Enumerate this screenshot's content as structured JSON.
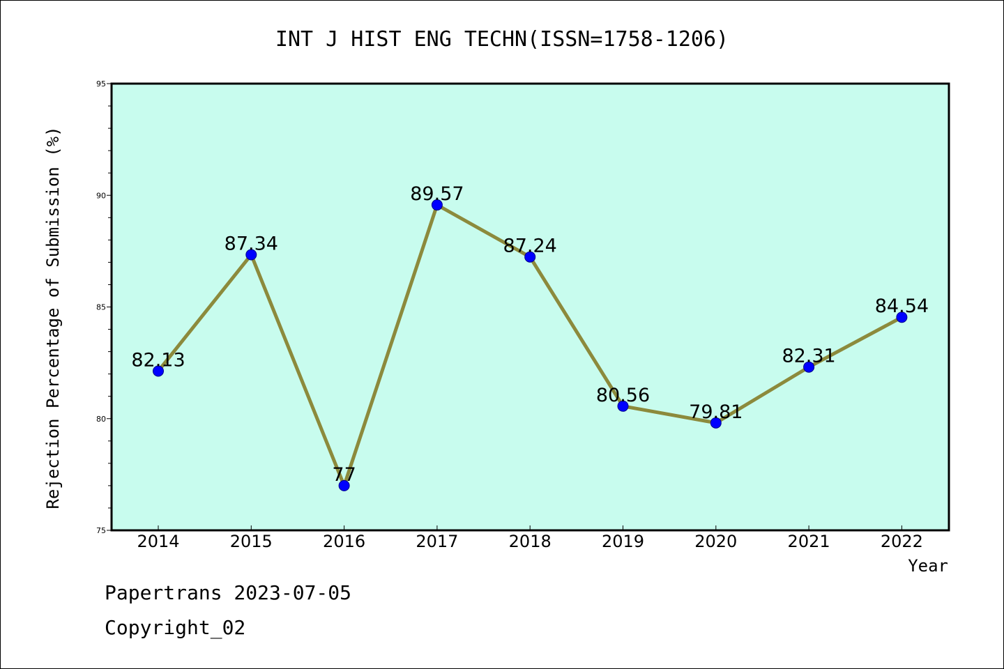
{
  "chart_data": {
    "type": "line",
    "title": "INT J HIST ENG TECHN(ISSN=1758-1206)",
    "xlabel": "Year",
    "ylabel": "Rejection Percentage of Submission (%)",
    "categories": [
      "2014",
      "2015",
      "2016",
      "2017",
      "2018",
      "2019",
      "2020",
      "2021",
      "2022"
    ],
    "values": [
      82.13,
      87.34,
      77,
      89.57,
      87.24,
      80.56,
      79.81,
      82.31,
      84.54
    ],
    "data_labels": [
      "82.13",
      "87.34",
      "77",
      "89.57",
      "87.24",
      "80.56",
      "79.81",
      "82.31",
      "84.54"
    ],
    "ylim": [
      75,
      95
    ],
    "yticks": [
      "75",
      "80",
      "85",
      "90",
      "95"
    ],
    "grid": false,
    "colors": {
      "plot_background": "#c8fcee",
      "line": "#8c8a3c",
      "marker": "#0000ff"
    }
  },
  "footer": {
    "line1": "Papertrans 2023-07-05",
    "line2": "Copyright_02"
  }
}
